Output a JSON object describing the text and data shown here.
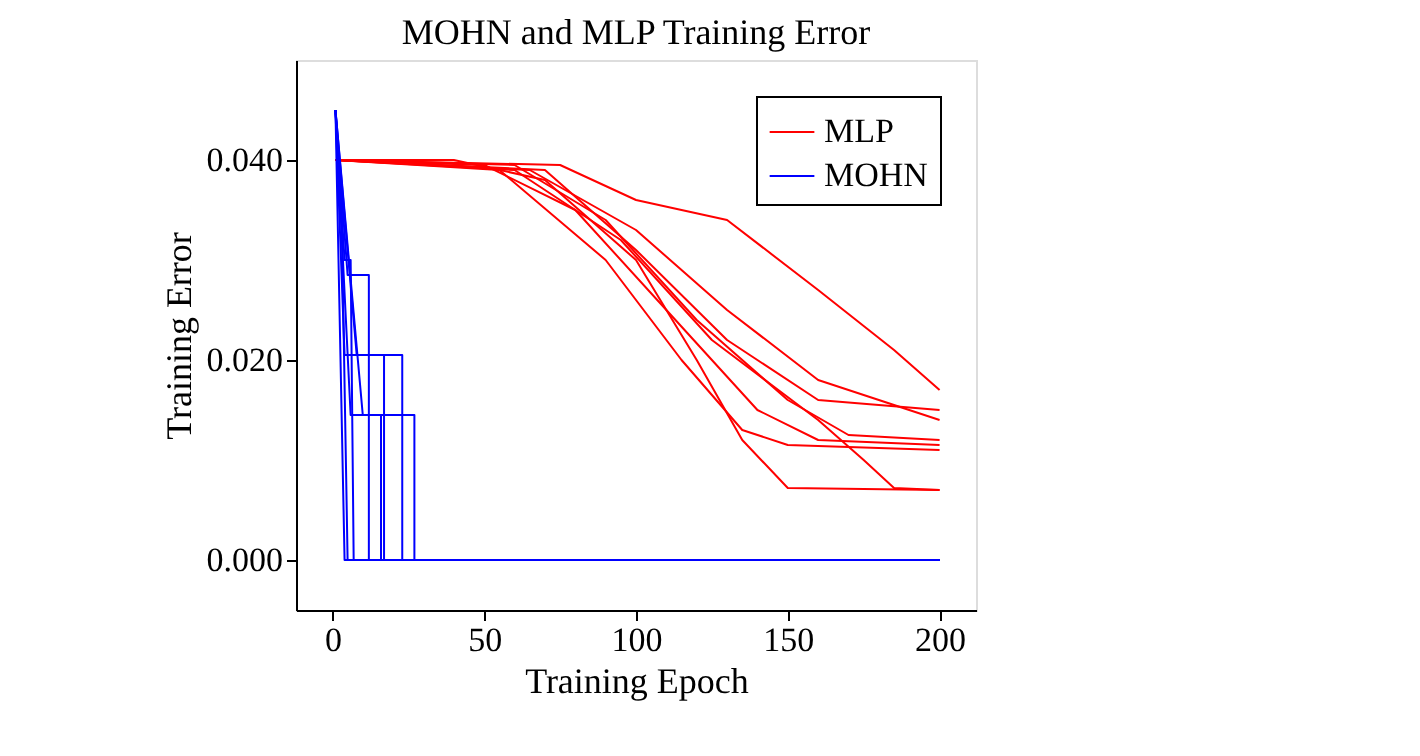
{
  "chart_data": {
    "type": "line",
    "title": "MOHN and MLP Training Error",
    "xlabel": "Training Epoch",
    "ylabel": "Training Error",
    "xlim": [
      -12,
      212
    ],
    "ylim": [
      -0.005,
      0.05
    ],
    "xticks": [
      0,
      50,
      100,
      150,
      200
    ],
    "yticks": [
      {
        "value": 0,
        "label": "0.000"
      },
      {
        "value": 0.02,
        "label": "0.020"
      },
      {
        "value": 0.04,
        "label": "0.040"
      }
    ],
    "grid": false,
    "legend": "top right",
    "marker": "none",
    "line_style": "solid",
    "series": [
      {
        "name": "MLP",
        "color": "#ff0000",
        "x": [
          1,
          40,
          70,
          100,
          120,
          135,
          150,
          200
        ],
        "values": [
          0.04,
          0.04,
          0.038,
          0.03,
          0.02,
          0.012,
          0.0072,
          0.007
        ]
      },
      {
        "color": "#ff0000",
        "x": [
          1,
          50,
          80,
          110,
          140,
          160,
          200
        ],
        "values": [
          0.04,
          0.0395,
          0.035,
          0.025,
          0.015,
          0.012,
          0.0115
        ]
      },
      {
        "color": "#ff0000",
        "x": [
          1,
          60,
          90,
          120,
          150,
          170,
          200
        ],
        "values": [
          0.04,
          0.0395,
          0.034,
          0.024,
          0.016,
          0.0125,
          0.012
        ]
      },
      {
        "color": "#ff0000",
        "x": [
          1,
          70,
          100,
          130,
          160,
          200
        ],
        "values": [
          0.04,
          0.039,
          0.031,
          0.022,
          0.016,
          0.015
        ]
      },
      {
        "color": "#ff0000",
        "x": [
          1,
          75,
          100,
          130,
          160,
          185,
          200
        ],
        "values": [
          0.04,
          0.0395,
          0.036,
          0.034,
          0.027,
          0.021,
          0.017
        ]
      },
      {
        "color": "#ff0000",
        "x": [
          1,
          55,
          90,
          115,
          135,
          150,
          200
        ],
        "values": [
          0.04,
          0.039,
          0.03,
          0.02,
          0.013,
          0.0115,
          0.011
        ]
      },
      {
        "color": "#ff0000",
        "x": [
          1,
          60,
          95,
          125,
          160,
          175,
          185,
          200
        ],
        "values": [
          0.04,
          0.039,
          0.032,
          0.022,
          0.014,
          0.01,
          0.0072,
          0.007
        ]
      },
      {
        "color": "#ff0000",
        "x": [
          1,
          65,
          100,
          130,
          160,
          200
        ],
        "values": [
          0.04,
          0.039,
          0.033,
          0.025,
          0.018,
          0.014
        ]
      },
      {
        "name": "MOHN",
        "color": "#0000ff",
        "x": [
          1,
          4,
          200
        ],
        "values": [
          0.045,
          0,
          0
        ]
      },
      {
        "color": "#0000ff",
        "x": [
          1,
          4,
          6,
          7,
          200
        ],
        "values": [
          0.045,
          0.03,
          0.03,
          0,
          0
        ]
      },
      {
        "color": "#0000ff",
        "x": [
          1,
          5,
          12,
          12,
          200
        ],
        "values": [
          0.045,
          0.0285,
          0.0285,
          0,
          0
        ]
      },
      {
        "color": "#0000ff",
        "x": [
          1,
          8,
          23,
          23,
          200
        ],
        "values": [
          0.045,
          0.0205,
          0.0205,
          0,
          0
        ]
      },
      {
        "color": "#0000ff",
        "x": [
          1,
          10,
          27,
          27,
          200
        ],
        "values": [
          0.045,
          0.0145,
          0.0145,
          0,
          0
        ]
      },
      {
        "color": "#0000ff",
        "x": [
          1,
          6,
          16,
          16,
          200
        ],
        "values": [
          0.045,
          0.0145,
          0.0145,
          0,
          0
        ]
      },
      {
        "color": "#0000ff",
        "x": [
          1,
          3,
          5,
          200
        ],
        "values": [
          0.045,
          0.035,
          0,
          0
        ]
      },
      {
        "color": "#0000ff",
        "x": [
          1,
          4,
          17,
          17,
          200
        ],
        "values": [
          0.045,
          0.0205,
          0.0205,
          0,
          0
        ]
      }
    ]
  }
}
